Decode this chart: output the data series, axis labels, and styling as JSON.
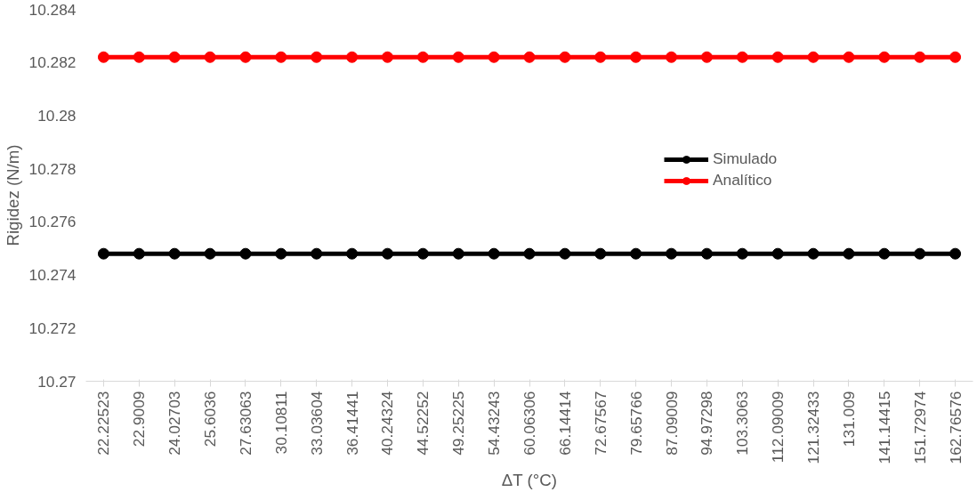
{
  "chart_data": {
    "type": "line",
    "xlabel": "ΔT (°C)",
    "ylabel": "Rigidez (N/m)",
    "categories": [
      "22.22523",
      "22.9009",
      "24.02703",
      "25.6036",
      "27.63063",
      "30.10811",
      "33.03604",
      "36.41441",
      "40.24324",
      "44.52252",
      "49.25225",
      "54.43243",
      "60.06306",
      "66.14414",
      "72.67567",
      "79.65766",
      "87.09009",
      "94.97298",
      "103.3063",
      "112.09009",
      "121.32433",
      "131.009",
      "141.14415",
      "151.72974",
      "162.76576"
    ],
    "series": [
      {
        "name": "Simulado",
        "color": "#000000",
        "values": [
          10.2748,
          10.2748,
          10.2748,
          10.2748,
          10.2748,
          10.2748,
          10.2748,
          10.2748,
          10.2748,
          10.2748,
          10.2748,
          10.2748,
          10.2748,
          10.2748,
          10.2748,
          10.2748,
          10.2748,
          10.2748,
          10.2748,
          10.2748,
          10.2748,
          10.2748,
          10.2748,
          10.2748,
          10.2748
        ]
      },
      {
        "name": "Analítico",
        "color": "#ff0000",
        "values": [
          10.2822,
          10.2822,
          10.2822,
          10.2822,
          10.2822,
          10.2822,
          10.2822,
          10.2822,
          10.2822,
          10.2822,
          10.2822,
          10.2822,
          10.2822,
          10.2822,
          10.2822,
          10.2822,
          10.2822,
          10.2822,
          10.2822,
          10.2822,
          10.2822,
          10.2822,
          10.2822,
          10.2822,
          10.2822
        ]
      }
    ],
    "ylim": [
      10.27,
      10.284
    ],
    "yticks": [
      10.27,
      10.272,
      10.274,
      10.276,
      10.278,
      10.28,
      10.282,
      10.284
    ],
    "grid": false,
    "legend": "right",
    "marker": "circle",
    "line_style": "solid"
  }
}
